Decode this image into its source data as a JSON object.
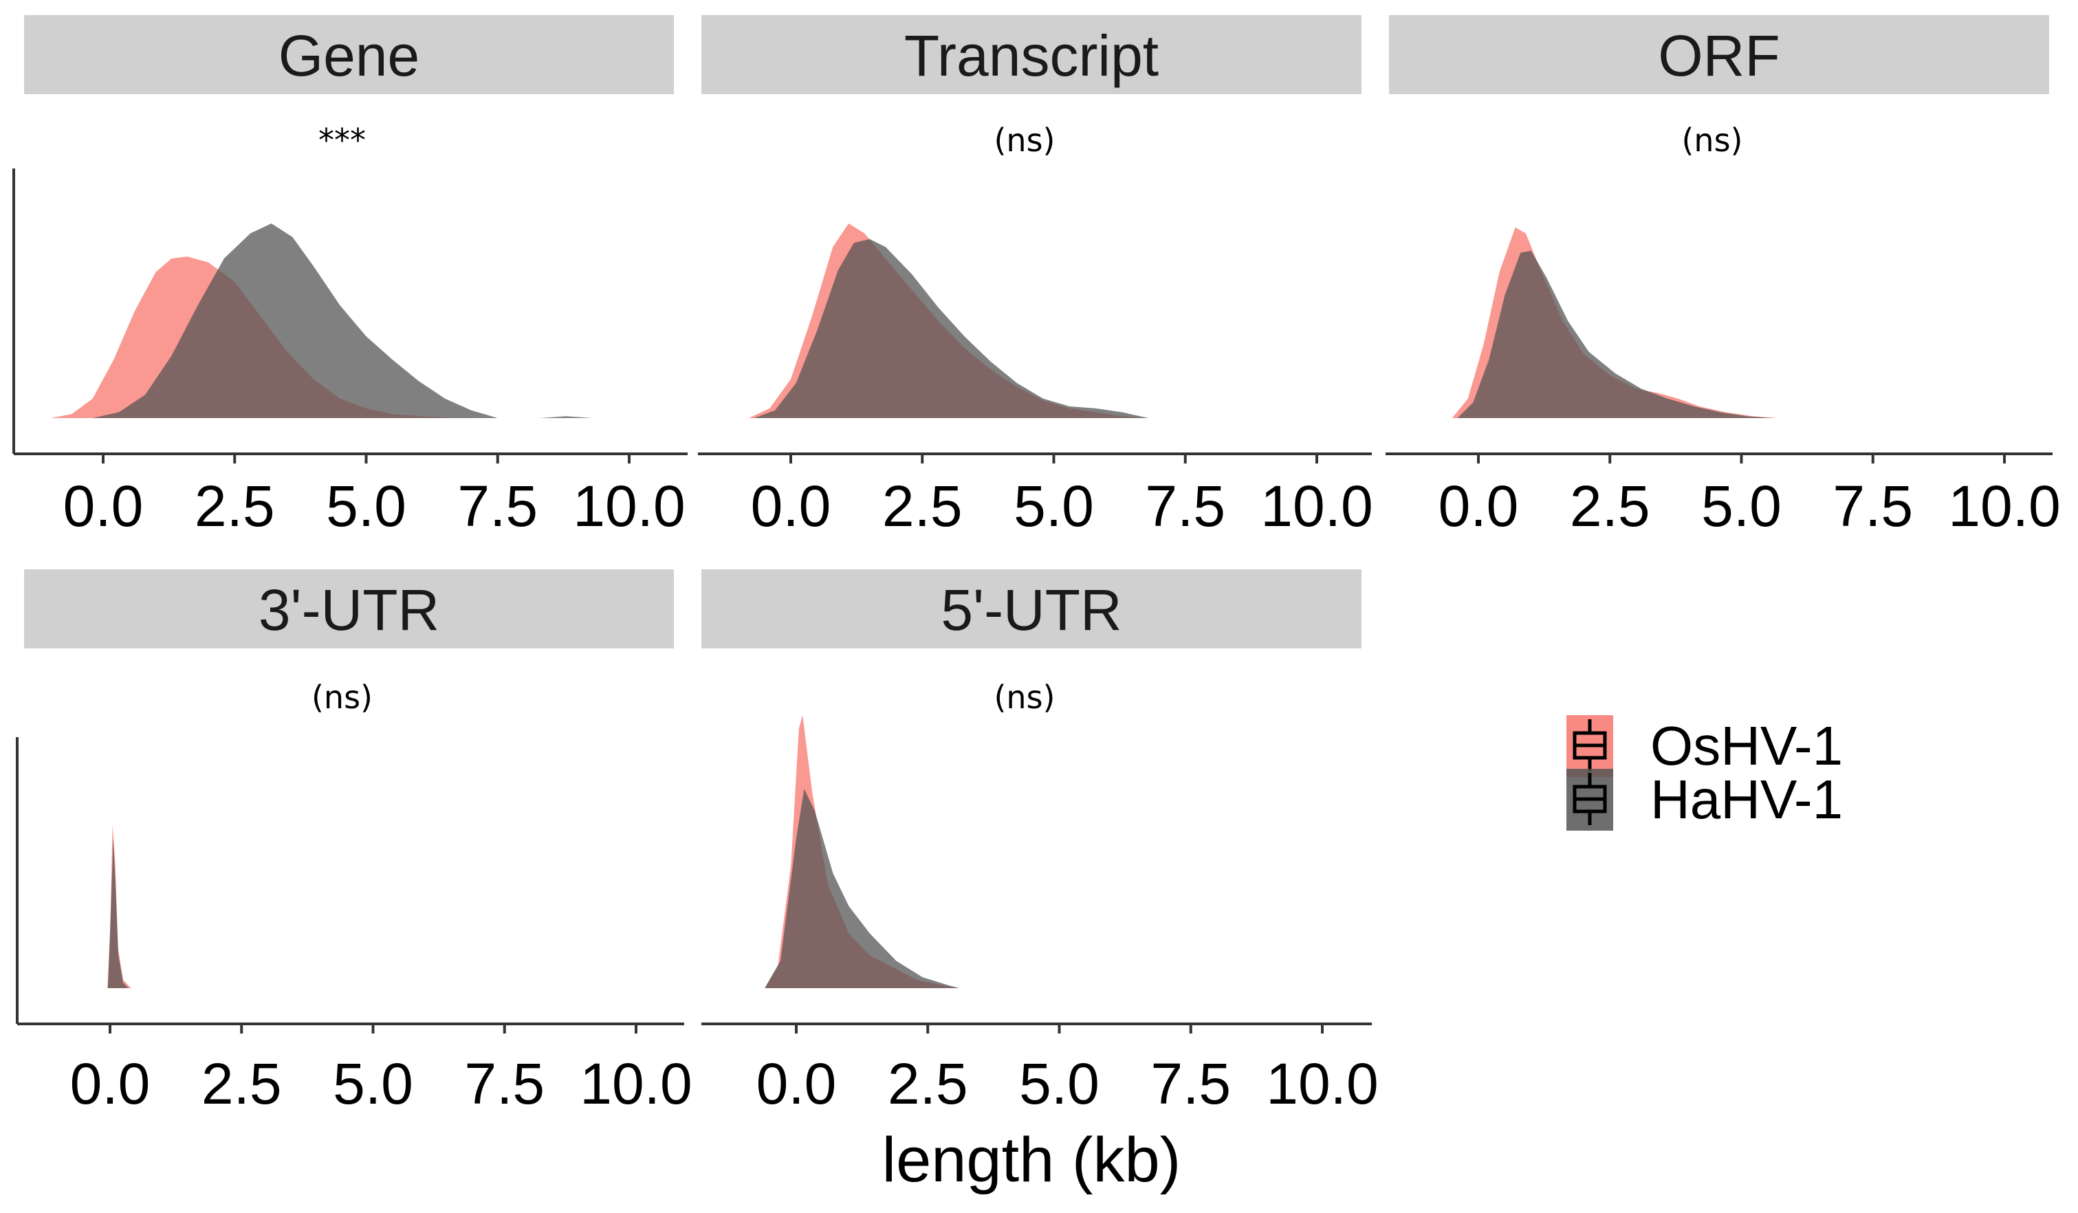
{
  "chart_data": {
    "type": "area",
    "subtype": "density",
    "xlabel": "length (kb)",
    "ylabel": "",
    "xlim": [
      -1.5,
      10.5
    ],
    "xticks": [
      "0.0",
      "2.5",
      "5.0",
      "7.5",
      "10.0"
    ],
    "xtick_values": [
      0,
      2.5,
      5,
      7.5,
      10
    ],
    "y_axis_ticks_shown": false,
    "grid": false,
    "legend": {
      "placement": "right",
      "entries": [
        {
          "name": "OsHV-1",
          "color": "#f8766d"
        },
        {
          "name": "HaHV-1",
          "color": "#555555"
        }
      ]
    },
    "panels": [
      {
        "facet": "Gene",
        "significance": "***",
        "series": [
          {
            "name": "OsHV-1",
            "points": [
              [
                -1.0,
                0.0
              ],
              [
                -0.6,
                0.02
              ],
              [
                -0.2,
                0.1
              ],
              [
                0.2,
                0.3
              ],
              [
                0.6,
                0.55
              ],
              [
                1.0,
                0.75
              ],
              [
                1.3,
                0.82
              ],
              [
                1.6,
                0.83
              ],
              [
                2.0,
                0.8
              ],
              [
                2.5,
                0.7
              ],
              [
                3.0,
                0.52
              ],
              [
                3.5,
                0.34
              ],
              [
                4.0,
                0.2
              ],
              [
                4.5,
                0.1
              ],
              [
                5.0,
                0.05
              ],
              [
                5.5,
                0.02
              ],
              [
                6.0,
                0.01
              ],
              [
                6.5,
                0.003
              ],
              [
                7.0,
                0.0
              ]
            ]
          },
          {
            "name": "HaHV-1",
            "points": [
              [
                -0.2,
                0.0
              ],
              [
                0.3,
                0.03
              ],
              [
                0.8,
                0.12
              ],
              [
                1.3,
                0.32
              ],
              [
                1.8,
                0.58
              ],
              [
                2.3,
                0.82
              ],
              [
                2.8,
                0.95
              ],
              [
                3.2,
                1.0
              ],
              [
                3.6,
                0.93
              ],
              [
                4.0,
                0.78
              ],
              [
                4.5,
                0.58
              ],
              [
                5.0,
                0.42
              ],
              [
                5.5,
                0.3
              ],
              [
                6.0,
                0.19
              ],
              [
                6.5,
                0.1
              ],
              [
                7.0,
                0.04
              ],
              [
                7.5,
                0.0
              ],
              [
                8.3,
                0.0
              ],
              [
                8.8,
                0.01
              ],
              [
                9.3,
                0.0
              ]
            ]
          }
        ]
      },
      {
        "facet": "Transcript",
        "significance": "(ns)",
        "series": [
          {
            "name": "OsHV-1",
            "points": [
              [
                -0.8,
                0.0
              ],
              [
                -0.4,
                0.05
              ],
              [
                0.0,
                0.2
              ],
              [
                0.4,
                0.52
              ],
              [
                0.8,
                0.88
              ],
              [
                1.1,
                1.0
              ],
              [
                1.4,
                0.95
              ],
              [
                1.8,
                0.82
              ],
              [
                2.3,
                0.66
              ],
              [
                2.8,
                0.5
              ],
              [
                3.3,
                0.36
              ],
              [
                3.8,
                0.25
              ],
              [
                4.3,
                0.16
              ],
              [
                4.8,
                0.09
              ],
              [
                5.3,
                0.05
              ],
              [
                5.8,
                0.03
              ],
              [
                6.3,
                0.01
              ],
              [
                6.8,
                0.0
              ]
            ]
          },
          {
            "name": "HaHV-1",
            "points": [
              [
                -0.7,
                0.0
              ],
              [
                -0.3,
                0.04
              ],
              [
                0.1,
                0.18
              ],
              [
                0.5,
                0.45
              ],
              [
                0.9,
                0.76
              ],
              [
                1.2,
                0.9
              ],
              [
                1.5,
                0.92
              ],
              [
                1.8,
                0.88
              ],
              [
                2.3,
                0.74
              ],
              [
                2.8,
                0.57
              ],
              [
                3.3,
                0.42
              ],
              [
                3.8,
                0.29
              ],
              [
                4.3,
                0.18
              ],
              [
                4.8,
                0.1
              ],
              [
                5.3,
                0.06
              ],
              [
                5.8,
                0.05
              ],
              [
                6.3,
                0.03
              ],
              [
                6.8,
                0.0
              ]
            ]
          }
        ]
      },
      {
        "facet": "ORF",
        "significance": "(ns)",
        "series": [
          {
            "name": "OsHV-1",
            "points": [
              [
                -0.5,
                0.0
              ],
              [
                -0.2,
                0.1
              ],
              [
                0.1,
                0.38
              ],
              [
                0.4,
                0.75
              ],
              [
                0.7,
                0.98
              ],
              [
                0.9,
                0.95
              ],
              [
                1.2,
                0.75
              ],
              [
                1.6,
                0.5
              ],
              [
                2.0,
                0.33
              ],
              [
                2.5,
                0.22
              ],
              [
                3.0,
                0.15
              ],
              [
                3.4,
                0.13
              ],
              [
                3.8,
                0.1
              ],
              [
                4.2,
                0.06
              ],
              [
                4.7,
                0.03
              ],
              [
                5.2,
                0.01
              ],
              [
                5.7,
                0.0
              ]
            ]
          },
          {
            "name": "HaHV-1",
            "points": [
              [
                -0.4,
                0.0
              ],
              [
                -0.1,
                0.08
              ],
              [
                0.2,
                0.3
              ],
              [
                0.5,
                0.63
              ],
              [
                0.8,
                0.85
              ],
              [
                1.0,
                0.86
              ],
              [
                1.3,
                0.72
              ],
              [
                1.7,
                0.5
              ],
              [
                2.1,
                0.34
              ],
              [
                2.6,
                0.23
              ],
              [
                3.1,
                0.15
              ],
              [
                3.6,
                0.1
              ],
              [
                4.1,
                0.06
              ],
              [
                4.6,
                0.03
              ],
              [
                5.1,
                0.01
              ],
              [
                5.6,
                0.0
              ]
            ]
          }
        ]
      },
      {
        "facet": "3'-UTR",
        "significance": "(ns)",
        "series": [
          {
            "name": "OsHV-1",
            "points": [
              [
                -0.05,
                0.0
              ],
              [
                0.0,
                0.2
              ],
              [
                0.05,
                0.6
              ],
              [
                0.1,
                0.45
              ],
              [
                0.15,
                0.15
              ],
              [
                0.25,
                0.03
              ],
              [
                0.4,
                0.0
              ]
            ]
          },
          {
            "name": "HaHV-1",
            "points": [
              [
                -0.04,
                0.0
              ],
              [
                0.02,
                0.3
              ],
              [
                0.06,
                0.55
              ],
              [
                0.1,
                0.4
              ],
              [
                0.16,
                0.12
              ],
              [
                0.25,
                0.02
              ],
              [
                0.35,
                0.0
              ]
            ]
          }
        ]
      },
      {
        "facet": "5'-UTR",
        "significance": "(ns)",
        "series": [
          {
            "name": "OsHV-1",
            "points": [
              [
                -0.6,
                0.0
              ],
              [
                -0.35,
                0.08
              ],
              [
                -0.1,
                0.45
              ],
              [
                0.05,
                0.95
              ],
              [
                0.12,
                1.0
              ],
              [
                0.3,
                0.72
              ],
              [
                0.6,
                0.38
              ],
              [
                1.0,
                0.2
              ],
              [
                1.4,
                0.12
              ],
              [
                1.8,
                0.08
              ],
              [
                2.3,
                0.03
              ],
              [
                2.8,
                0.01
              ],
              [
                3.1,
                0.0
              ]
            ]
          },
          {
            "name": "HaHV-1",
            "points": [
              [
                -0.6,
                0.0
              ],
              [
                -0.3,
                0.1
              ],
              [
                0.0,
                0.55
              ],
              [
                0.15,
                0.73
              ],
              [
                0.35,
                0.65
              ],
              [
                0.7,
                0.42
              ],
              [
                1.0,
                0.3
              ],
              [
                1.4,
                0.2
              ],
              [
                1.9,
                0.1
              ],
              [
                2.4,
                0.04
              ],
              [
                2.9,
                0.01
              ],
              [
                3.1,
                0.0
              ]
            ]
          }
        ]
      }
    ]
  },
  "colors": {
    "OsHV-1": "#f8766d",
    "HaHV-1": "#555555",
    "strip_background": "#d0d0d0",
    "axis": "#333333"
  }
}
